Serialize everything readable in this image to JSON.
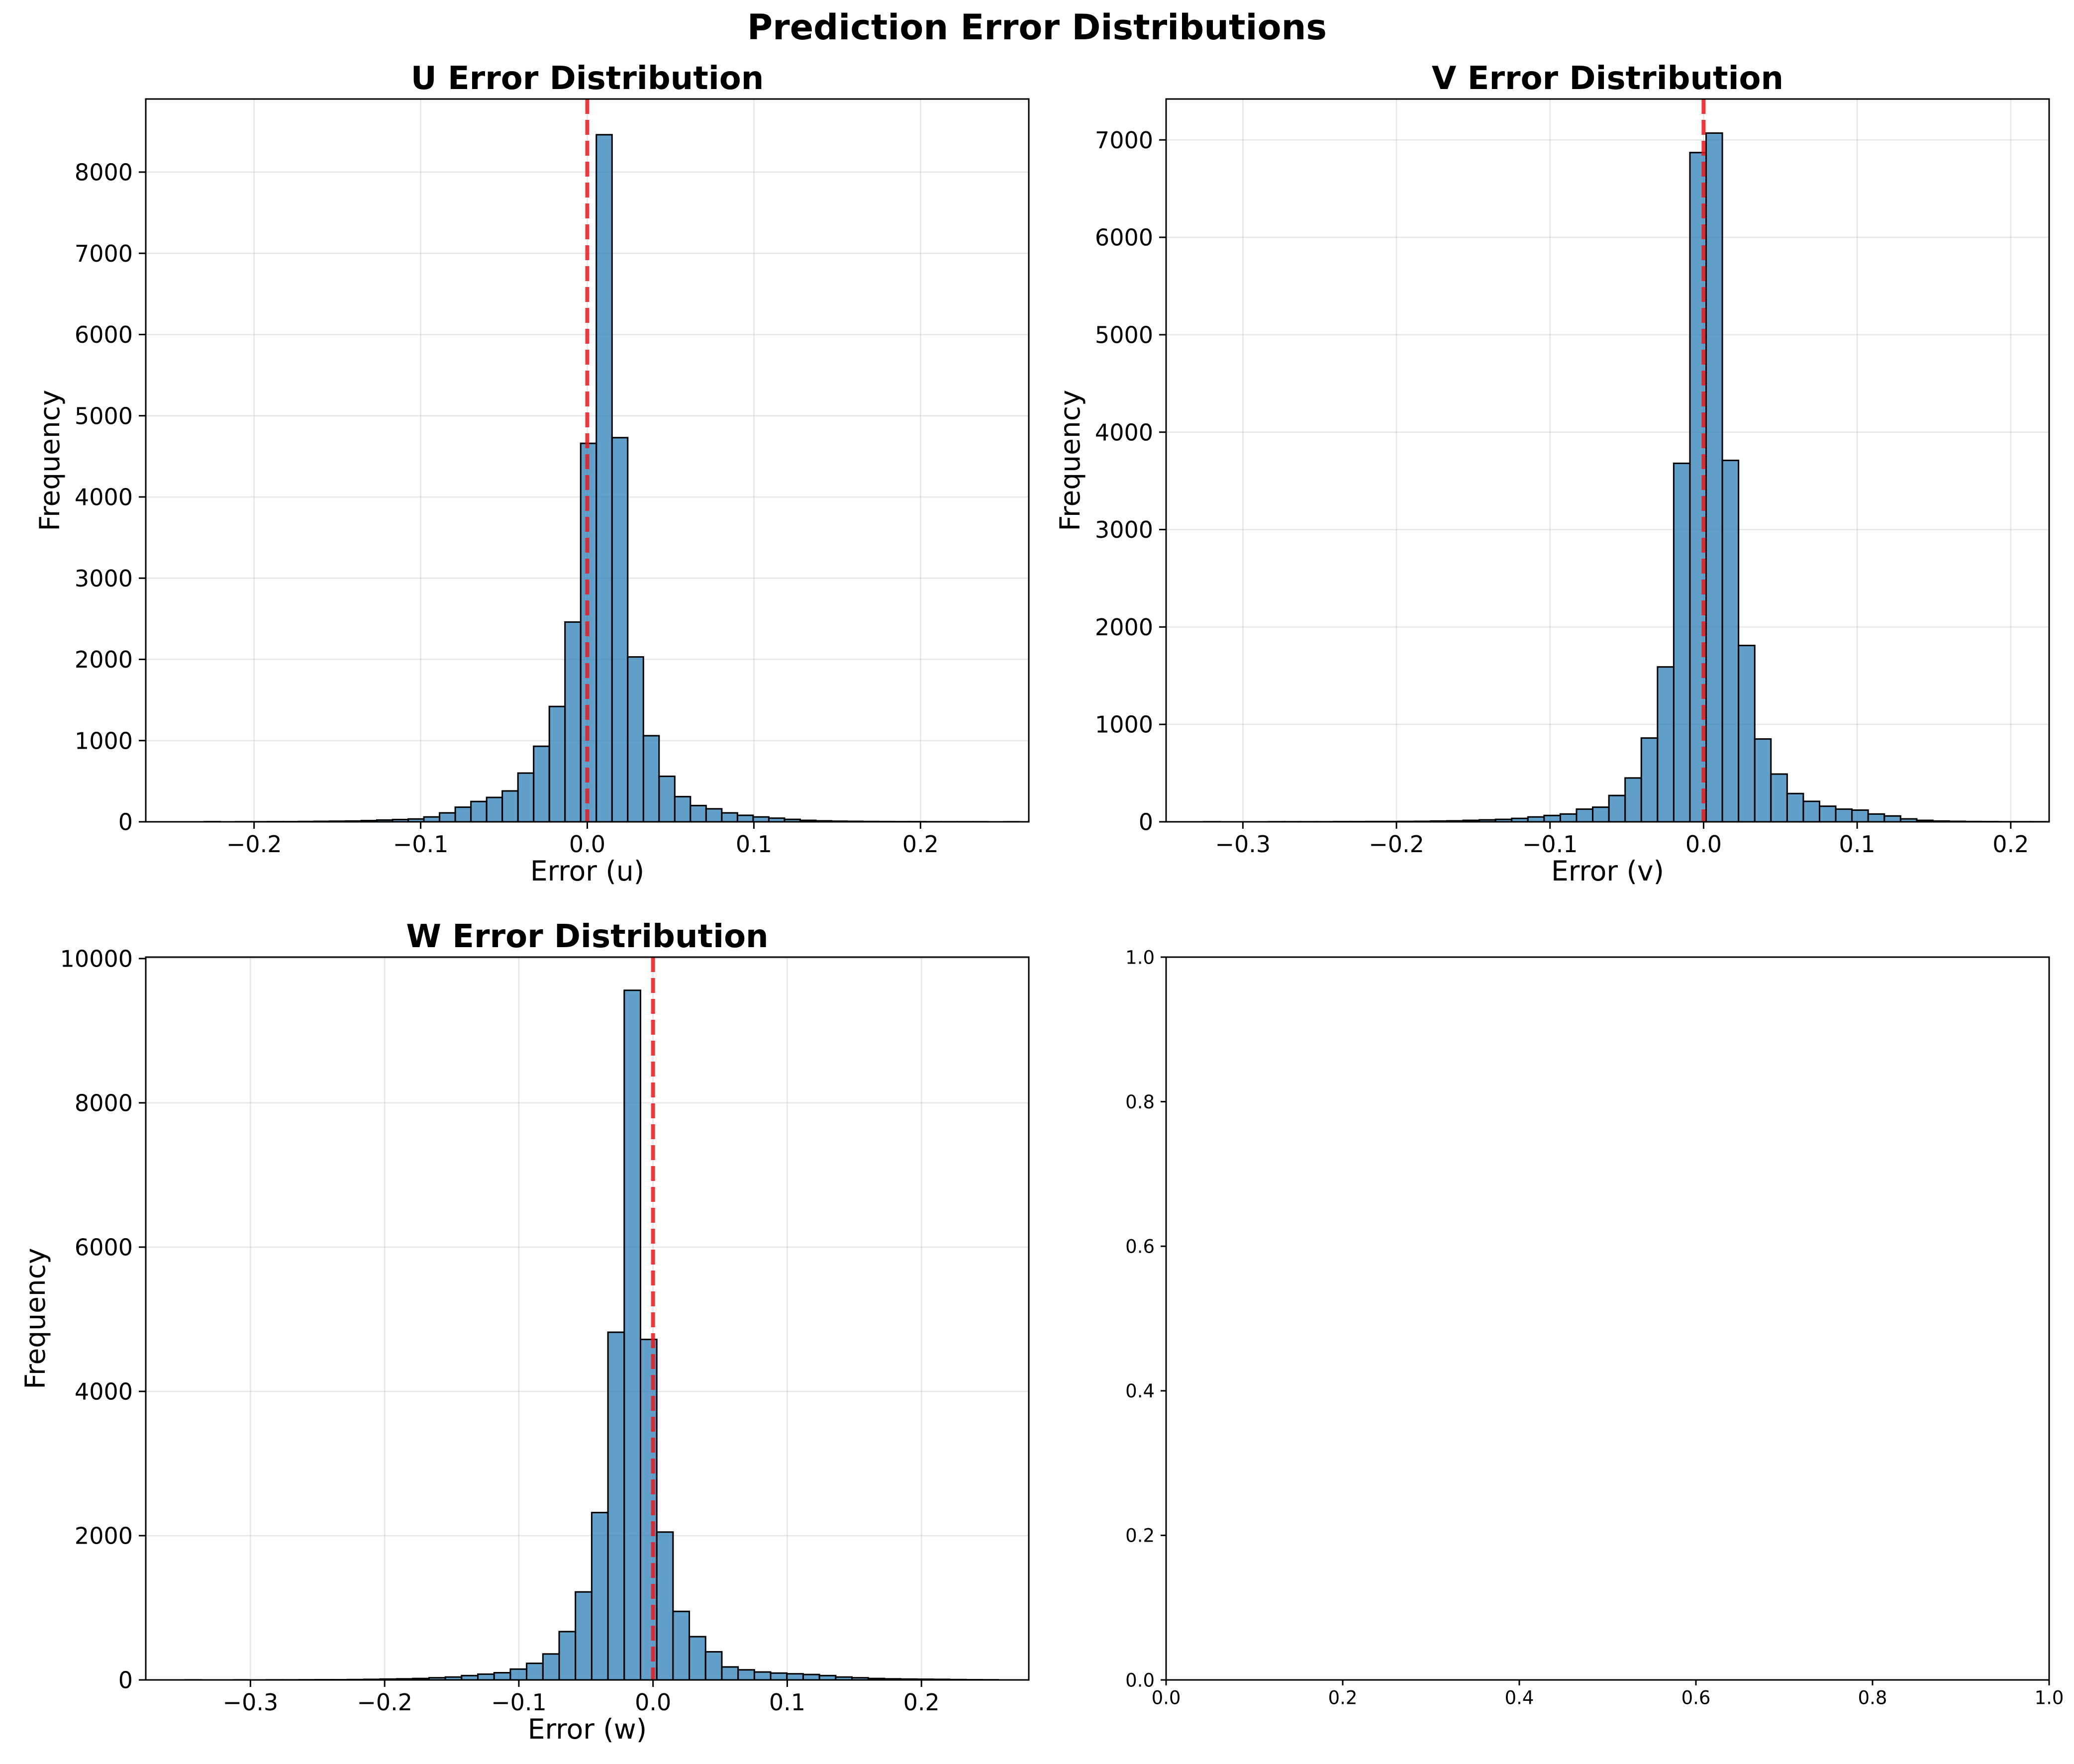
{
  "figure": {
    "suptitle": "Prediction Error Distributions",
    "bar_color": "#1f77b4",
    "bar_edge_color": "#000000",
    "reference_line_color": "#e8191c",
    "grid_color": "#b0b0b0"
  },
  "chart_data": [
    {
      "type": "bar",
      "title": "U Error Distribution",
      "xlabel": "Error (u)",
      "ylabel": "Frequency",
      "xlim": [
        -0.265,
        0.265
      ],
      "ylim": [
        0,
        8900
      ],
      "xticks": [
        -0.2,
        -0.1,
        0.0,
        0.1,
        0.2
      ],
      "xtick_labels": [
        "−0.2",
        "−0.1",
        "0.0",
        "0.1",
        "0.2"
      ],
      "yticks": [
        0,
        1000,
        2000,
        3000,
        4000,
        5000,
        6000,
        7000,
        8000
      ],
      "ytick_labels": [
        "0",
        "1000",
        "2000",
        "3000",
        "4000",
        "5000",
        "6000",
        "7000",
        "8000"
      ],
      "grid": true,
      "reference_line_x": 0.0,
      "bin_start": -0.2298,
      "bin_width": 0.00941,
      "values": [
        2,
        0,
        1,
        1,
        2,
        2,
        4,
        6,
        8,
        10,
        15,
        22,
        28,
        35,
        60,
        110,
        180,
        250,
        300,
        380,
        600,
        930,
        1420,
        2460,
        4660,
        8460,
        4730,
        2030,
        1060,
        560,
        310,
        200,
        160,
        110,
        80,
        60,
        45,
        30,
        18,
        12,
        8,
        6,
        4,
        3,
        2,
        2,
        1,
        1,
        1,
        1,
        0,
        1
      ]
    },
    {
      "type": "bar",
      "title": "V Error Distribution",
      "xlabel": "Error (v)",
      "ylabel": "Frequency",
      "xlim": [
        -0.35,
        0.225
      ],
      "ylim": [
        0,
        7420
      ],
      "xticks": [
        -0.3,
        -0.2,
        -0.1,
        0.0,
        0.1,
        0.2
      ],
      "xtick_labels": [
        "−0.3",
        "−0.2",
        "−0.1",
        "0.0",
        "0.1",
        "0.2"
      ],
      "yticks": [
        0,
        1000,
        2000,
        3000,
        4000,
        5000,
        6000,
        7000
      ],
      "ytick_labels": [
        "0",
        "1000",
        "2000",
        "3000",
        "4000",
        "5000",
        "6000",
        "7000"
      ],
      "grid": true,
      "reference_line_x": 0.0,
      "bin_start": -0.3254,
      "bin_width": 0.01055,
      "values": [
        1,
        0,
        0,
        0,
        1,
        1,
        1,
        1,
        2,
        2,
        3,
        3,
        4,
        5,
        8,
        10,
        15,
        20,
        25,
        35,
        50,
        65,
        80,
        130,
        150,
        270,
        450,
        860,
        1590,
        3680,
        6870,
        7070,
        3710,
        1810,
        850,
        490,
        290,
        210,
        160,
        130,
        120,
        80,
        60,
        30,
        15,
        8,
        5,
        3,
        2,
        1,
        1,
        1
      ]
    },
    {
      "type": "bar",
      "title": "W Error Distribution",
      "xlabel": "Error (w)",
      "ylabel": "Frequency",
      "xlim": [
        -0.378,
        0.28
      ],
      "ylim": [
        0,
        10020
      ],
      "xticks": [
        -0.3,
        -0.2,
        -0.1,
        0.0,
        0.1,
        0.2
      ],
      "xtick_labels": [
        "−0.3",
        "−0.2",
        "−0.1",
        "0.0",
        "0.1",
        "0.2"
      ],
      "yticks": [
        0,
        2000,
        4000,
        6000,
        8000,
        10000
      ],
      "ytick_labels": [
        "0",
        "2000",
        "4000",
        "6000",
        "8000",
        "10000"
      ],
      "grid": true,
      "reference_line_x": 0.0,
      "bin_start": -0.3487,
      "bin_width": 0.01212,
      "values": [
        1,
        0,
        0,
        1,
        0,
        1,
        1,
        2,
        3,
        3,
        5,
        8,
        12,
        15,
        20,
        30,
        40,
        60,
        80,
        100,
        150,
        230,
        360,
        670,
        1220,
        2320,
        4820,
        9560,
        4720,
        2050,
        950,
        600,
        390,
        180,
        140,
        110,
        95,
        85,
        75,
        60,
        40,
        30,
        20,
        15,
        12,
        10,
        8,
        5,
        3,
        2
      ]
    },
    {
      "type": "scatter",
      "title": "",
      "xlabel": "",
      "ylabel": "",
      "xlim": [
        0.0,
        1.0
      ],
      "ylim": [
        0.0,
        1.0
      ],
      "xticks": [
        0.0,
        0.2,
        0.4,
        0.6,
        0.8,
        1.0
      ],
      "xtick_labels": [
        "0.0",
        "0.2",
        "0.4",
        "0.6",
        "0.8",
        "1.0"
      ],
      "yticks": [
        0.0,
        0.2,
        0.4,
        0.6,
        0.8,
        1.0
      ],
      "ytick_labels": [
        "0.0",
        "0.2",
        "0.4",
        "0.6",
        "0.8",
        "1.0"
      ],
      "grid": false,
      "values": []
    }
  ]
}
